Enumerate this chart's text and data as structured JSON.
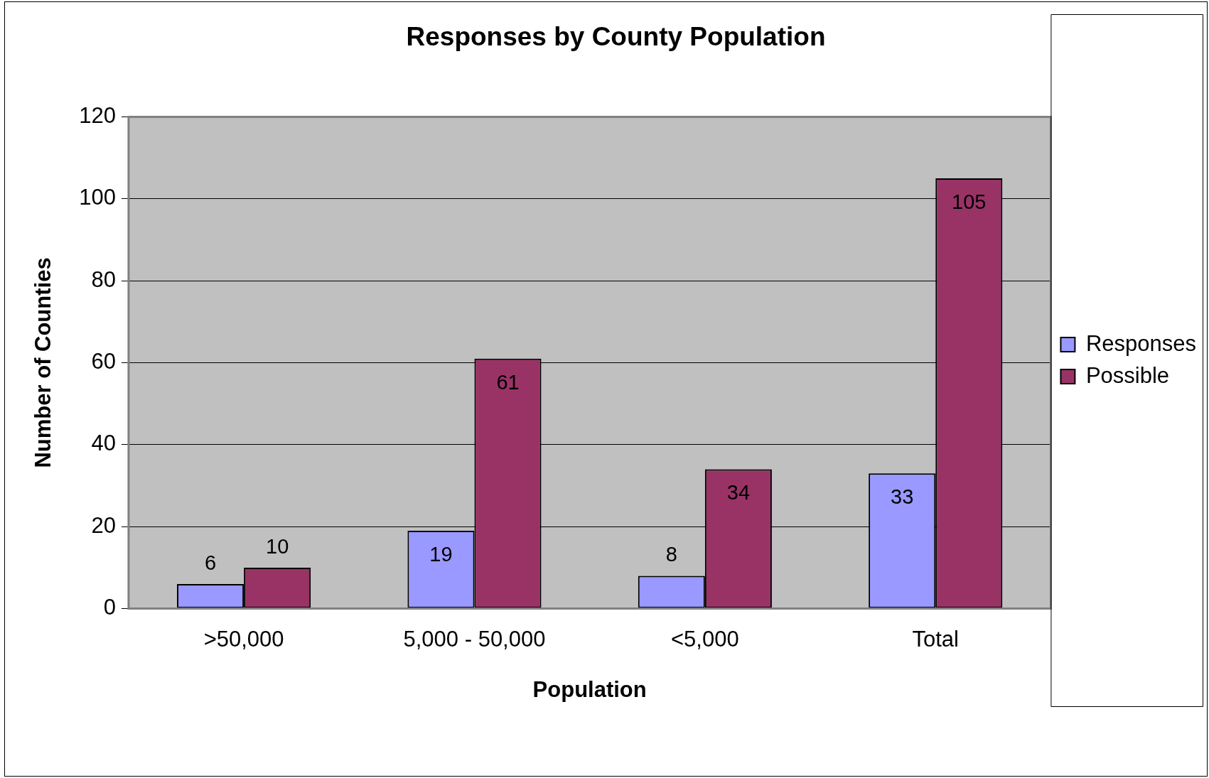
{
  "chart_data": {
    "type": "bar",
    "title": "Responses by County Population",
    "xlabel": "Population",
    "ylabel": "Number of Counties",
    "categories": [
      ">50,000",
      "5,000 - 50,000",
      "<5,000",
      "Total"
    ],
    "series": [
      {
        "name": "Responses",
        "color": "#9999ff",
        "values": [
          6,
          19,
          8,
          33
        ]
      },
      {
        "name": "Possible",
        "color": "#993366",
        "values": [
          10,
          61,
          34,
          105
        ]
      }
    ],
    "ylim": [
      0,
      120
    ],
    "yticks": [
      0,
      20,
      40,
      60,
      80,
      100,
      120
    ],
    "grid": "y",
    "legend": "right",
    "data_labels": true
  }
}
